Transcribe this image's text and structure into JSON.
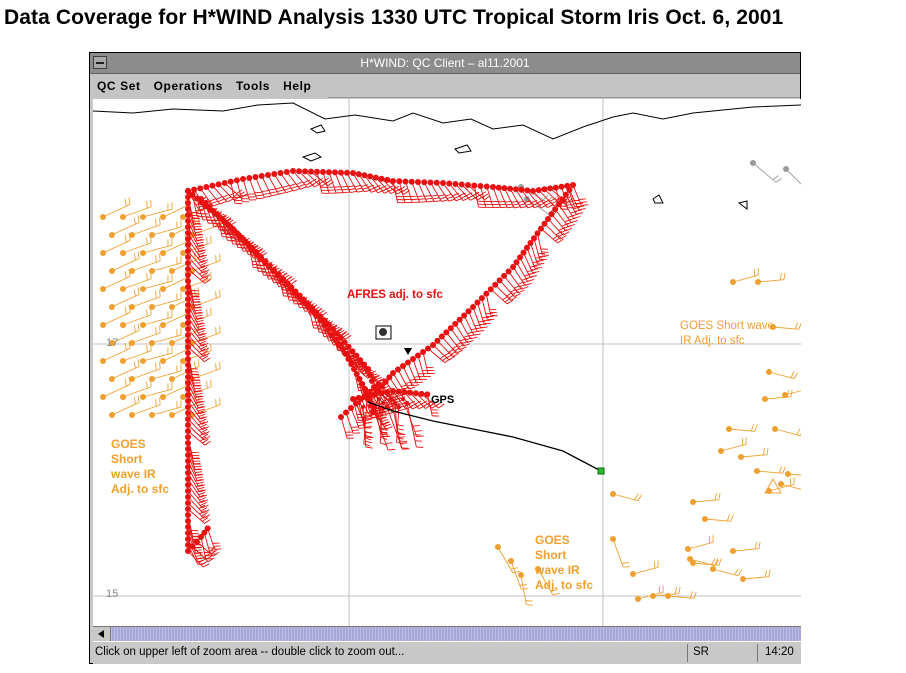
{
  "page_title": "Data Coverage  for H*WIND Analysis 1330 UTC  Tropical Storm Iris Oct. 6, 2001",
  "window": {
    "title": "H*WIND: QC Client – al11.2001",
    "menus": [
      "QC Set",
      "Operations",
      "Tools",
      "Help"
    ]
  },
  "map": {
    "latitude_labels": [
      "17",
      "15"
    ],
    "annotations": {
      "afres": "AFRES adj. to sfc",
      "gps": "GPS",
      "goes_right": "GOES Short wave\nIR Adj. to sfc",
      "goes_left": "GOES\nShort\nwave IR\nAdj. to sfc",
      "goes_center": "GOES\nShort\nwave IR\nAdj. to sfc"
    },
    "colors": {
      "afres": "#e81010",
      "goes": "#f0a030",
      "gps": "#000000",
      "coast": "#000000",
      "grid": "#c0c0c0"
    }
  },
  "status": {
    "message": "Click on upper left of zoom area -- double click to zoom out...",
    "mode": "SR",
    "time": "14:20"
  }
}
